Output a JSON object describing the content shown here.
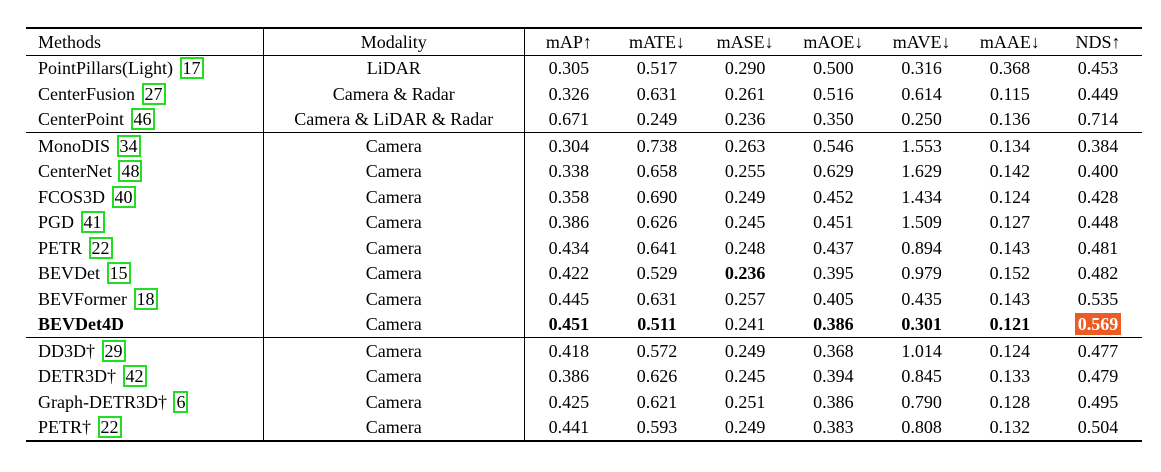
{
  "headers": [
    "Methods",
    "Modality",
    "mAP↑",
    "mATE↓",
    "mASE↓",
    "mAOE↓",
    "mAVE↓",
    "mAAE↓",
    "NDS↑"
  ],
  "groups": [
    [
      {
        "name": "PointPillars(Light)",
        "cite": "17",
        "modality": "LiDAR",
        "vals": [
          "0.305",
          "0.517",
          "0.290",
          "0.500",
          "0.316",
          "0.368",
          "0.453"
        ]
      },
      {
        "name": "CenterFusion",
        "cite": "27",
        "modality": "Camera & Radar",
        "vals": [
          "0.326",
          "0.631",
          "0.261",
          "0.516",
          "0.614",
          "0.115",
          "0.449"
        ]
      },
      {
        "name": "CenterPoint",
        "cite": "46",
        "modality": "Camera & LiDAR & Radar",
        "vals": [
          "0.671",
          "0.249",
          "0.236",
          "0.350",
          "0.250",
          "0.136",
          "0.714"
        ]
      }
    ],
    [
      {
        "name": "MonoDIS",
        "cite": "34",
        "modality": "Camera",
        "vals": [
          "0.304",
          "0.738",
          "0.263",
          "0.546",
          "1.553",
          "0.134",
          "0.384"
        ]
      },
      {
        "name": "CenterNet",
        "cite": "48",
        "modality": "Camera",
        "vals": [
          "0.338",
          "0.658",
          "0.255",
          "0.629",
          "1.629",
          "0.142",
          "0.400"
        ]
      },
      {
        "name": "FCOS3D",
        "cite": "40",
        "modality": "Camera",
        "vals": [
          "0.358",
          "0.690",
          "0.249",
          "0.452",
          "1.434",
          "0.124",
          "0.428"
        ]
      },
      {
        "name": "PGD",
        "cite": "41",
        "modality": "Camera",
        "vals": [
          "0.386",
          "0.626",
          "0.245",
          "0.451",
          "1.509",
          "0.127",
          "0.448"
        ]
      },
      {
        "name": "PETR",
        "cite": "22",
        "modality": "Camera",
        "vals": [
          "0.434",
          "0.641",
          "0.248",
          "0.437",
          "0.894",
          "0.143",
          "0.481"
        ]
      },
      {
        "name": "BEVDet",
        "cite": "15",
        "modality": "Camera",
        "vals": [
          "0.422",
          "0.529",
          "0.236",
          "0.395",
          "0.979",
          "0.152",
          "0.482"
        ]
      },
      {
        "name": "BEVFormer",
        "cite": "18",
        "modality": "Camera",
        "vals": [
          "0.445",
          "0.631",
          "0.257",
          "0.405",
          "0.435",
          "0.143",
          "0.535"
        ]
      },
      {
        "name": "BEVDet4D",
        "cite": "",
        "modality": "Camera",
        "vals": [
          "0.451",
          "0.511",
          "0.241",
          "0.386",
          "0.301",
          "0.121",
          "0.569"
        ]
      }
    ],
    [
      {
        "name": "DD3D†",
        "cite": "29",
        "modality": "Camera",
        "vals": [
          "0.418",
          "0.572",
          "0.249",
          "0.368",
          "1.014",
          "0.124",
          "0.477"
        ]
      },
      {
        "name": "DETR3D†",
        "cite": "42",
        "modality": "Camera",
        "vals": [
          "0.386",
          "0.626",
          "0.245",
          "0.394",
          "0.845",
          "0.133",
          "0.479"
        ]
      },
      {
        "name": "Graph-DETR3D†",
        "cite": "6",
        "modality": "Camera",
        "vals": [
          "0.425",
          "0.621",
          "0.251",
          "0.386",
          "0.790",
          "0.128",
          "0.495"
        ]
      },
      {
        "name": "PETR†",
        "cite": "22",
        "modality": "Camera",
        "vals": [
          "0.441",
          "0.593",
          "0.249",
          "0.383",
          "0.808",
          "0.132",
          "0.504"
        ]
      }
    ]
  ],
  "colors": {
    "citation_box": "#22dd22",
    "highlight_bg": "#ee5a24"
  }
}
